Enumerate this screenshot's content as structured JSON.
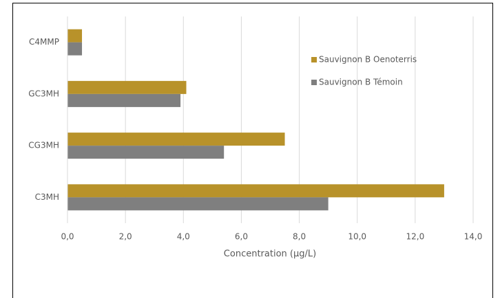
{
  "chart_data": {
    "type": "hbar",
    "xlabel": "Concentration (µg/L)",
    "categories": [
      "C3MH",
      "CG3MH",
      "GC3MH",
      "C4MMP"
    ],
    "series": [
      {
        "name": "Sauvignon B Oenoterris",
        "color": "#b8922a",
        "values": [
          13.0,
          7.5,
          4.1,
          0.5
        ]
      },
      {
        "name": "Sauvignon B Témoin",
        "color": "#7f7f7f",
        "values": [
          9.0,
          5.4,
          3.9,
          0.5
        ]
      }
    ],
    "xlim": [
      0,
      14
    ],
    "xticks": [
      {
        "value": 0,
        "label": "0,0"
      },
      {
        "value": 2,
        "label": "2,0"
      },
      {
        "value": 4,
        "label": "4,0"
      },
      {
        "value": 6,
        "label": "6,0"
      },
      {
        "value": 8,
        "label": "8,0"
      },
      {
        "value": 10,
        "label": "10,0"
      },
      {
        "value": 12,
        "label": "12,0"
      },
      {
        "value": 14,
        "label": "14,0"
      }
    ],
    "grid": true
  }
}
